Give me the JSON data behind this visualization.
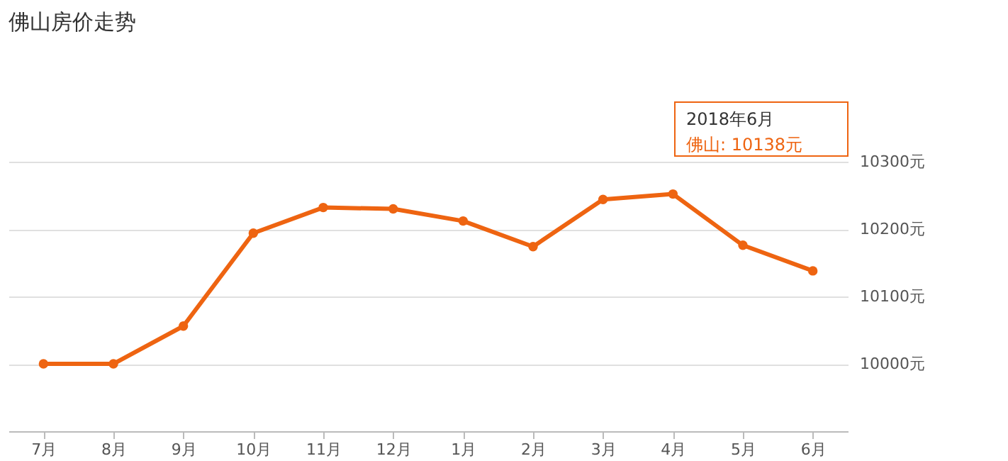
{
  "chart_data": {
    "type": "line",
    "title": "佛山房价走势",
    "categories": [
      "7月",
      "8月",
      "9月",
      "10月",
      "11月",
      "12月",
      "1月",
      "2月",
      "3月",
      "4月",
      "5月",
      "6月"
    ],
    "series": [
      {
        "color": "#ee6411",
        "values": [
          10000,
          10000,
          10056,
          10194,
          10232,
          10230,
          10212,
          10174,
          10244,
          10252,
          10176,
          10138
        ]
      }
    ],
    "ylim": [
      9900,
      10300
    ],
    "yticks": [
      {
        "value": 10000,
        "label": "10000元"
      },
      {
        "value": 10100,
        "label": "10100元"
      },
      {
        "value": 10200,
        "label": "10200元"
      },
      {
        "value": 10300,
        "label": "10300元"
      }
    ],
    "grid": "y",
    "marker": "circle",
    "line_style": "solid",
    "annotations": [
      "2018年6月",
      "佛山:  10138元"
    ]
  }
}
